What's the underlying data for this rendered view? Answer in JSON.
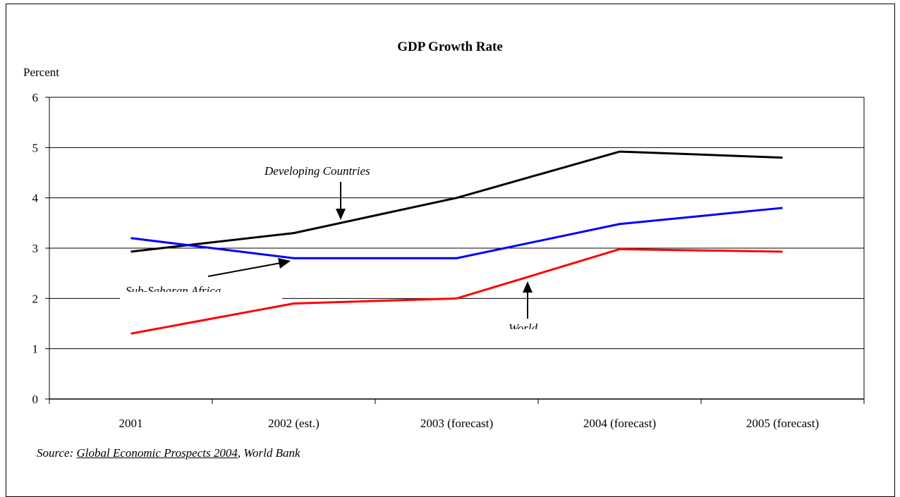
{
  "chart_data": {
    "type": "line",
    "title": "GDP Growth Rate",
    "ylabel": "Percent",
    "xlabel": "",
    "categories": [
      "2001",
      "2002 (est.)",
      "2003 (forecast)",
      "2004 (forecast)",
      "2005 (forecast)"
    ],
    "ylim": [
      0,
      6
    ],
    "yticks": [
      "0",
      "1",
      "2",
      "3",
      "4",
      "5",
      "6"
    ],
    "grid": "horizontal",
    "series": [
      {
        "name": "Developing Countries",
        "color": "#000000",
        "values": [
          2.93,
          3.3,
          4.0,
          4.92,
          4.8
        ]
      },
      {
        "name": "Sub-Saharan Africa",
        "color": "#0000ff",
        "values": [
          3.2,
          2.8,
          2.8,
          3.48,
          3.8
        ]
      },
      {
        "name": "World",
        "color": "#ff0000",
        "values": [
          1.3,
          1.9,
          2.0,
          2.98,
          2.93
        ]
      }
    ],
    "annotations": [
      "Developing Countries",
      "Sub-Saharan Africa",
      "World"
    ]
  },
  "source": {
    "prefix": "Source: ",
    "title": "Global Economic Prospects 2004",
    "suffix": ", World Bank"
  }
}
